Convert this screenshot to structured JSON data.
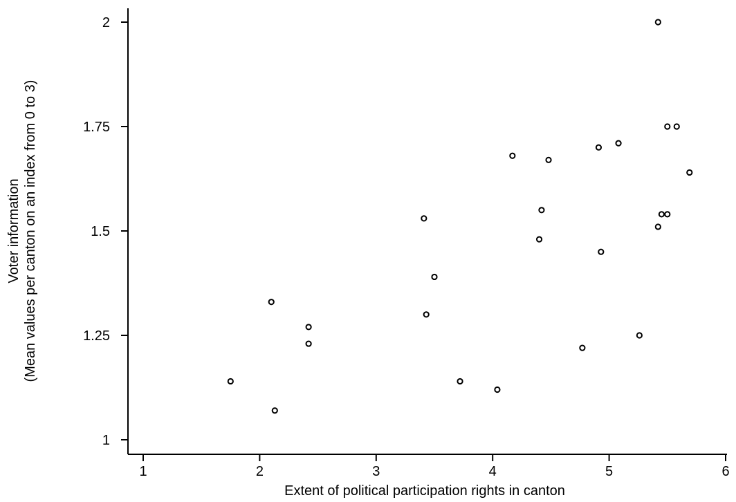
{
  "chart_data": {
    "type": "scatter",
    "title": "",
    "xlabel": "Extent of political participation rights in canton",
    "ylabel_line1": "Voter information",
    "ylabel_line2": "(Mean values per canton on an index from 0 to 3)",
    "xlim": [
      1,
      6
    ],
    "ylim": [
      1,
      2
    ],
    "x_ticks": [
      1,
      2,
      3,
      4,
      5,
      6
    ],
    "y_ticks": [
      1,
      1.25,
      1.5,
      1.75,
      2
    ],
    "x_tick_labels": [
      "1",
      "2",
      "3",
      "4",
      "5",
      "6"
    ],
    "y_tick_labels": [
      "1",
      "1.25",
      "1.5",
      "1.75",
      "2"
    ],
    "grid": false,
    "legend": "none",
    "points": [
      {
        "x": 1.75,
        "y": 1.14
      },
      {
        "x": 2.1,
        "y": 1.33
      },
      {
        "x": 2.13,
        "y": 1.07
      },
      {
        "x": 2.42,
        "y": 1.27
      },
      {
        "x": 2.42,
        "y": 1.23
      },
      {
        "x": 3.41,
        "y": 1.53
      },
      {
        "x": 3.43,
        "y": 1.3
      },
      {
        "x": 3.5,
        "y": 1.39
      },
      {
        "x": 3.72,
        "y": 1.14
      },
      {
        "x": 4.04,
        "y": 1.12
      },
      {
        "x": 4.17,
        "y": 1.68
      },
      {
        "x": 4.4,
        "y": 1.48
      },
      {
        "x": 4.42,
        "y": 1.55
      },
      {
        "x": 4.48,
        "y": 1.67
      },
      {
        "x": 4.77,
        "y": 1.22
      },
      {
        "x": 4.91,
        "y": 1.7
      },
      {
        "x": 4.93,
        "y": 1.45
      },
      {
        "x": 5.08,
        "y": 1.71
      },
      {
        "x": 5.26,
        "y": 1.25
      },
      {
        "x": 5.42,
        "y": 2.0
      },
      {
        "x": 5.42,
        "y": 1.51
      },
      {
        "x": 5.45,
        "y": 1.54
      },
      {
        "x": 5.5,
        "y": 1.54
      },
      {
        "x": 5.5,
        "y": 1.75
      },
      {
        "x": 5.58,
        "y": 1.75
      },
      {
        "x": 5.69,
        "y": 1.64
      }
    ]
  }
}
